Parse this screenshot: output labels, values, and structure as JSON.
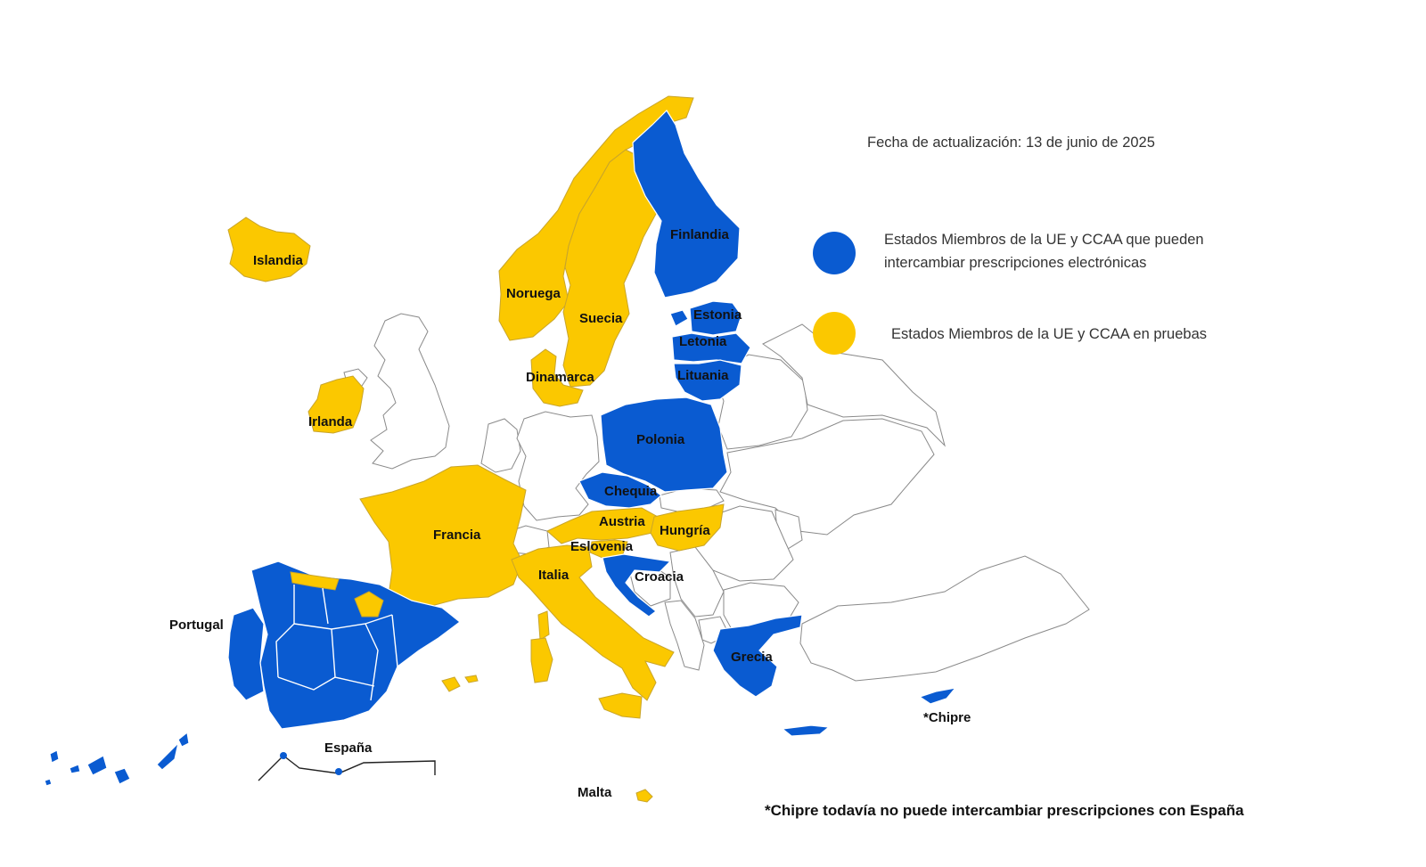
{
  "update_date": "Fecha de actualización: 13 de junio de 2025",
  "legend": {
    "blue": {
      "color": "#0a5bd1",
      "line1": "Estados Miembros de la UE y CCAA que pueden",
      "line2": "intercambiar prescripciones electrónicas"
    },
    "yellow": {
      "color": "#fbc800",
      "text": "Estados Miembros de la UE y CCAA en pruebas"
    }
  },
  "countries": {
    "islandia": {
      "label": "Islandia",
      "status": "pruebas"
    },
    "noruega": {
      "label": "Noruega",
      "status": "pruebas"
    },
    "suecia": {
      "label": "Suecia",
      "status": "pruebas"
    },
    "finlandia": {
      "label": "Finlandia",
      "status": "intercambio"
    },
    "estonia": {
      "label": "Estonia",
      "status": "intercambio"
    },
    "letonia": {
      "label": "Letonia",
      "status": "intercambio"
    },
    "lituania": {
      "label": "Lituania",
      "status": "intercambio"
    },
    "dinamarca": {
      "label": "Dinamarca",
      "status": "pruebas"
    },
    "irlanda": {
      "label": "Irlanda",
      "status": "pruebas"
    },
    "polonia": {
      "label": "Polonia",
      "status": "intercambio"
    },
    "chequia": {
      "label": "Chequia",
      "status": "intercambio"
    },
    "austria": {
      "label": "Austria",
      "status": "pruebas"
    },
    "hungria": {
      "label": "Hungría",
      "status": "pruebas"
    },
    "francia": {
      "label": "Francia",
      "status": "pruebas"
    },
    "eslovenia": {
      "label": "Eslovenia",
      "status": "pruebas"
    },
    "italia": {
      "label": "Italia",
      "status": "pruebas"
    },
    "croacia": {
      "label": "Croacia",
      "status": "intercambio"
    },
    "portugal": {
      "label": "Portugal",
      "status": "intercambio"
    },
    "grecia": {
      "label": "Grecia",
      "status": "intercambio"
    },
    "chipre": {
      "label": "*Chipre",
      "status": "intercambio"
    },
    "espana": {
      "label": "España",
      "status": "intercambio"
    },
    "malta": {
      "label": "Malta",
      "status": "pruebas"
    }
  },
  "footnote": "*Chipre todavía no puede intercambiar prescripciones con España"
}
